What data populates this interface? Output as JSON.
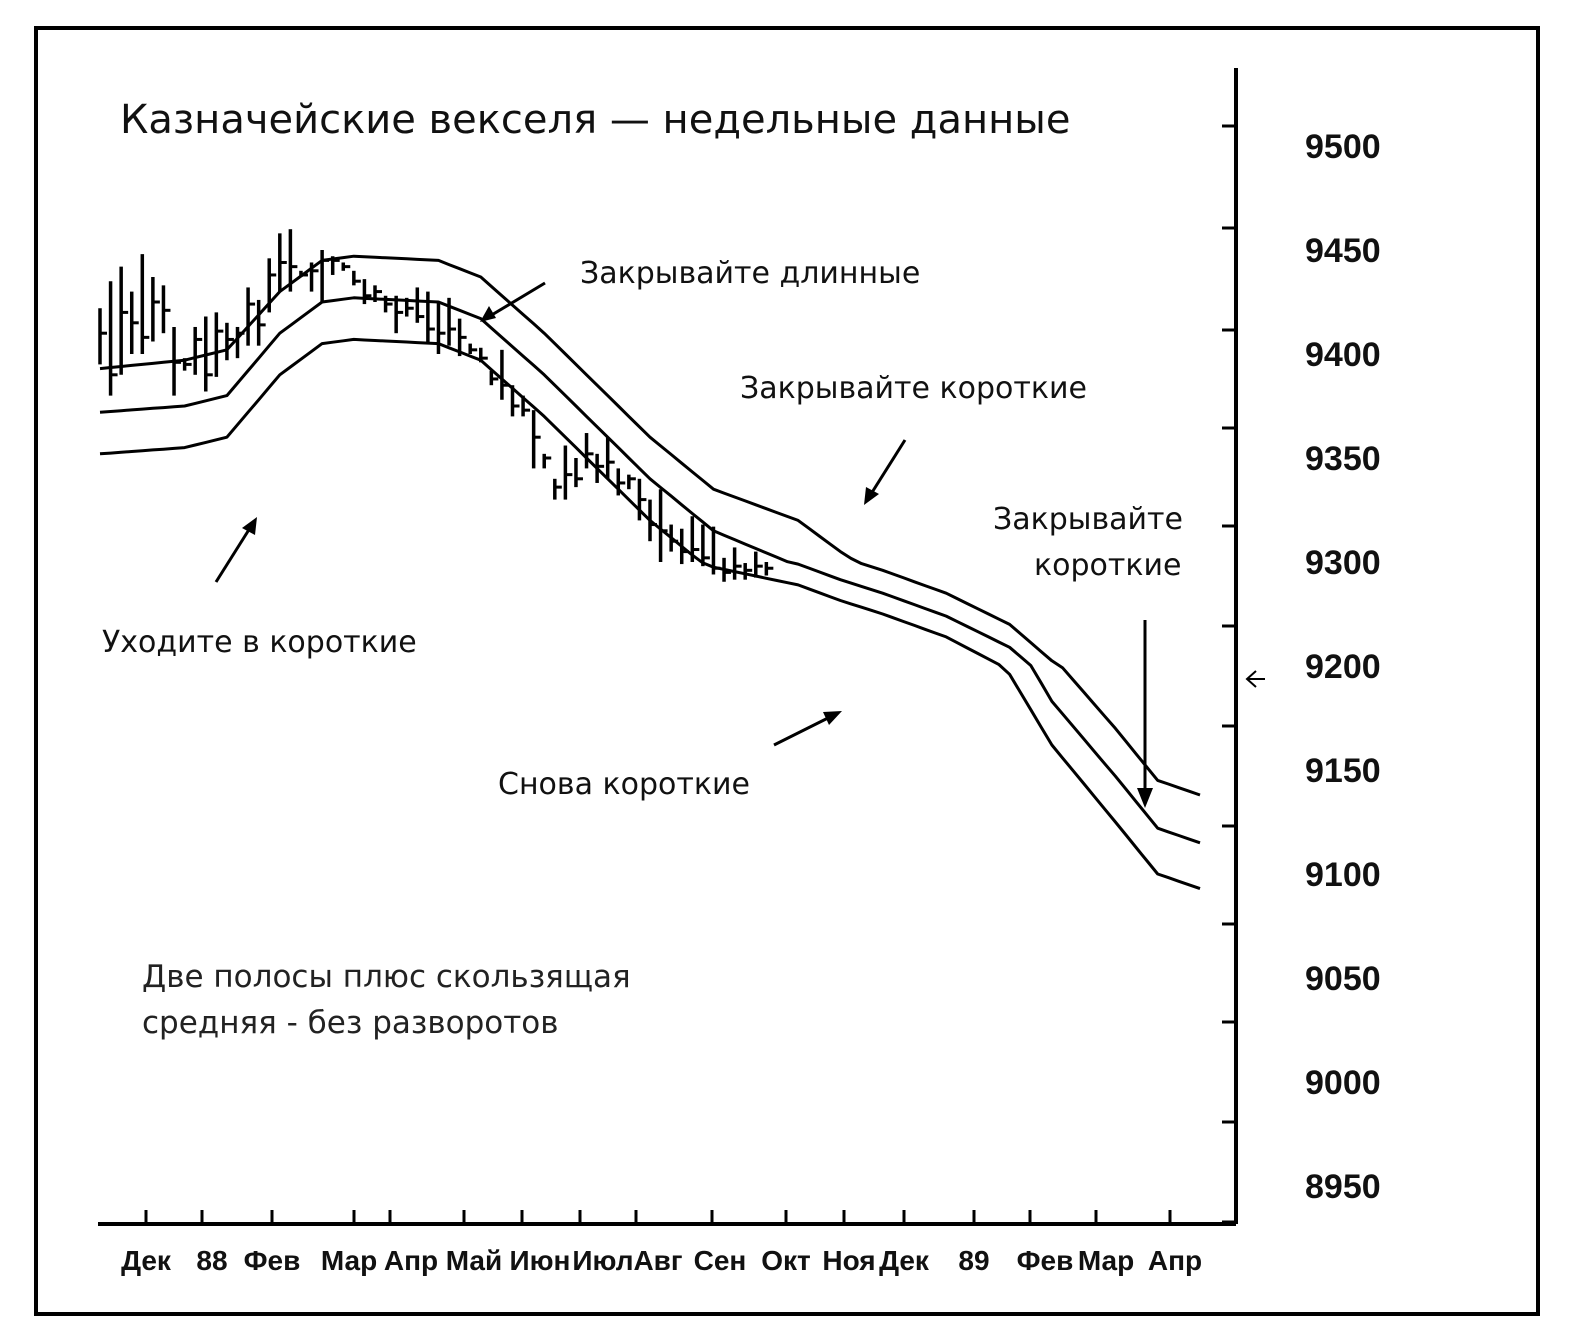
{
  "chart_data": {
    "type": "bar",
    "subtype": "weekly high-low-close bars with moving average and two envelope bands",
    "title": "Казначейские векселя — недельные данные",
    "y_axis": {
      "position": "right",
      "ticks": [
        9500,
        9450,
        9400,
        9350,
        9300,
        9200,
        9150,
        9100,
        9050,
        9000,
        8950
      ],
      "range": [
        8930,
        9530
      ]
    },
    "x_axis": {
      "ticks": [
        "Дек",
        "88",
        "Фев",
        "Мар",
        "Апр",
        "Май",
        "Июн",
        "Июл",
        "Авг",
        "Сен",
        "Окт",
        "Ноя",
        "Дек",
        "89",
        "Фев",
        "Мар",
        "Апр"
      ]
    },
    "upper_band": [
      [
        0,
        9393
      ],
      [
        8,
        9397
      ],
      [
        12,
        9402
      ],
      [
        17,
        9430
      ],
      [
        21,
        9445
      ],
      [
        24,
        9447
      ],
      [
        32,
        9445
      ],
      [
        36,
        9437
      ],
      [
        42,
        9410
      ],
      [
        52,
        9360
      ],
      [
        58,
        9335
      ],
      [
        66,
        9320
      ],
      [
        70,
        9305
      ],
      [
        74,
        9292
      ],
      [
        80,
        9270
      ],
      [
        86,
        9240
      ],
      [
        90,
        9205
      ],
      [
        96,
        9170
      ],
      [
        100,
        9145
      ],
      [
        104,
        9138
      ]
    ],
    "moving_average": [
      [
        0,
        9372
      ],
      [
        8,
        9375
      ],
      [
        12,
        9380
      ],
      [
        17,
        9410
      ],
      [
        21,
        9425
      ],
      [
        24,
        9427
      ],
      [
        32,
        9425
      ],
      [
        36,
        9417
      ],
      [
        42,
        9390
      ],
      [
        52,
        9340
      ],
      [
        58,
        9315
      ],
      [
        66,
        9298
      ],
      [
        70,
        9283
      ],
      [
        74,
        9270
      ],
      [
        80,
        9248
      ],
      [
        86,
        9218
      ],
      [
        90,
        9183
      ],
      [
        96,
        9147
      ],
      [
        100,
        9122
      ],
      [
        104,
        9115
      ]
    ],
    "lower_band": [
      [
        0,
        9352
      ],
      [
        8,
        9355
      ],
      [
        12,
        9360
      ],
      [
        17,
        9390
      ],
      [
        21,
        9405
      ],
      [
        24,
        9407
      ],
      [
        32,
        9405
      ],
      [
        36,
        9397
      ],
      [
        42,
        9370
      ],
      [
        52,
        9320
      ],
      [
        58,
        9295
      ],
      [
        66,
        9278
      ],
      [
        70,
        9263
      ],
      [
        74,
        9250
      ],
      [
        80,
        9228
      ],
      [
        86,
        9196
      ],
      [
        90,
        9162
      ],
      [
        96,
        9125
      ],
      [
        100,
        9100
      ],
      [
        104,
        9093
      ]
    ],
    "price_bars": [
      [
        0,
        9422,
        9395,
        9410
      ],
      [
        1,
        9435,
        9380,
        9390
      ],
      [
        2,
        9442,
        9390,
        9420
      ],
      [
        3,
        9430,
        9400,
        9415
      ],
      [
        4,
        9448,
        9400,
        9408
      ],
      [
        5,
        9437,
        9406,
        9425
      ],
      [
        6,
        9433,
        9410,
        9421
      ],
      [
        7,
        9413,
        9380,
        9396
      ],
      [
        8,
        9398,
        9392,
        9395
      ],
      [
        9,
        9413,
        9390,
        9407
      ],
      [
        10,
        9418,
        9382,
        9390
      ],
      [
        11,
        9420,
        9389,
        9411
      ],
      [
        12,
        9415,
        9397,
        9407
      ],
      [
        13,
        9413,
        9398,
        9410
      ],
      [
        14,
        9432,
        9404,
        9424
      ],
      [
        15,
        9426,
        9404,
        9414
      ],
      [
        16,
        9446,
        9420,
        9438
      ],
      [
        17,
        9458,
        9430,
        9444
      ],
      [
        18,
        9460,
        9430,
        9442
      ],
      [
        19,
        9440,
        9437,
        9438
      ],
      [
        20,
        9444,
        9430,
        9440
      ],
      [
        21,
        9450,
        9425,
        9445
      ],
      [
        22,
        9447,
        9438,
        9445
      ],
      [
        23,
        9444,
        9440,
        9442
      ],
      [
        24,
        9440,
        9433,
        9435
      ],
      [
        25,
        9436,
        9424,
        9428
      ],
      [
        26,
        9433,
        9425,
        9430
      ],
      [
        27,
        9428,
        9420,
        9424
      ],
      [
        28,
        9428,
        9410,
        9420
      ],
      [
        29,
        9427,
        9418,
        9422
      ],
      [
        30,
        9432,
        9415,
        9418
      ],
      [
        31,
        9430,
        9405,
        9412
      ],
      [
        32,
        9425,
        9400,
        9410
      ],
      [
        33,
        9427,
        9404,
        9412
      ],
      [
        34,
        9417,
        9399,
        9408
      ],
      [
        35,
        9405,
        9400,
        9402
      ],
      [
        36,
        9403,
        9396,
        9398
      ],
      [
        37,
        9392,
        9385,
        9388
      ],
      [
        38,
        9402,
        9378,
        9385
      ],
      [
        39,
        9385,
        9370,
        9375
      ],
      [
        40,
        9380,
        9370,
        9373
      ],
      [
        41,
        9373,
        9345,
        9360
      ],
      [
        42,
        9352,
        9345,
        9350
      ],
      [
        43,
        9340,
        9330,
        9336
      ],
      [
        44,
        9356,
        9330,
        9342
      ],
      [
        45,
        9350,
        9336,
        9340
      ],
      [
        46,
        9362,
        9345,
        9352
      ],
      [
        47,
        9352,
        9338,
        9346
      ],
      [
        48,
        9360,
        9340,
        9348
      ],
      [
        49,
        9345,
        9332,
        9338
      ],
      [
        50,
        9342,
        9335,
        9340
      ],
      [
        51,
        9340,
        9320,
        9330
      ],
      [
        52,
        9330,
        9310,
        9318
      ],
      [
        53,
        9335,
        9300,
        9315
      ],
      [
        54,
        9318,
        9305,
        9310
      ],
      [
        55,
        9316,
        9298,
        9305
      ],
      [
        56,
        9322,
        9300,
        9306
      ],
      [
        57,
        9318,
        9296,
        9302
      ],
      [
        58,
        9317,
        9288,
        9294
      ],
      [
        59,
        9302,
        9281,
        9290
      ],
      [
        60,
        9307,
        9283,
        9296
      ],
      [
        61,
        9299,
        9283,
        9292
      ],
      [
        62,
        9305,
        9285,
        9296
      ],
      [
        63,
        9300,
        9287,
        9294
      ]
    ],
    "annotations": [
      {
        "text": "Закрывайте длинные"
      },
      {
        "text": "Закрывайте короткие"
      },
      {
        "text": "Закрывайте короткие"
      },
      {
        "text": "Уходите в короткие"
      },
      {
        "text": "Снова короткие"
      }
    ],
    "note": [
      "Две полосы плюс скользящая",
      "средняя - без разворотов"
    ],
    "ylabel": "",
    "xlabel": ""
  }
}
